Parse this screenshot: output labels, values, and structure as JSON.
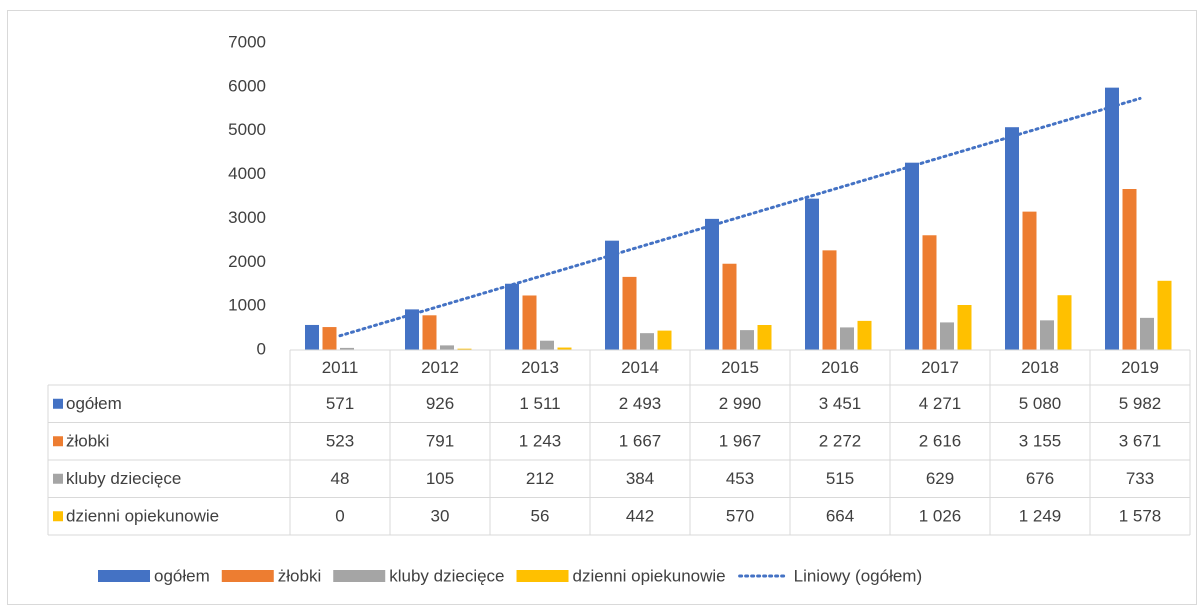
{
  "chart_data": {
    "type": "bar",
    "categories": [
      "2011",
      "2012",
      "2013",
      "2014",
      "2015",
      "2016",
      "2017",
      "2018",
      "2019"
    ],
    "series": [
      {
        "name": "ogółem",
        "color": "#4472c4",
        "values": [
          571,
          926,
          1511,
          2493,
          2990,
          3451,
          4271,
          5080,
          5982
        ],
        "value_labels": [
          "571",
          "926",
          "1 511",
          "2 493",
          "2 990",
          "3 451",
          "4 271",
          "5 080",
          "5 982"
        ]
      },
      {
        "name": "żłobki",
        "color": "#ed7d31",
        "values": [
          523,
          791,
          1243,
          1667,
          1967,
          2272,
          2616,
          3155,
          3671
        ],
        "value_labels": [
          "523",
          "791",
          "1 243",
          "1 667",
          "1 967",
          "2 272",
          "2 616",
          "3 155",
          "3 671"
        ]
      },
      {
        "name": "kluby dziecięce",
        "color": "#a5a5a5",
        "values": [
          48,
          105,
          212,
          384,
          453,
          515,
          629,
          676,
          733
        ],
        "value_labels": [
          "48",
          "105",
          "212",
          "384",
          "453",
          "515",
          "629",
          "676",
          "733"
        ]
      },
      {
        "name": "dzienni opiekunowie",
        "color": "#ffc000",
        "values": [
          0,
          30,
          56,
          442,
          570,
          664,
          1026,
          1249,
          1578
        ],
        "value_labels": [
          "0",
          "30",
          "56",
          "442",
          "570",
          "664",
          "1 026",
          "1 249",
          "1 578"
        ]
      }
    ],
    "trendline": {
      "name": "Liniowy (ogółem)",
      "color": "#4472c4",
      "series": "ogółem"
    },
    "ylim": [
      0,
      7000
    ],
    "yticks": [
      0,
      1000,
      2000,
      3000,
      4000,
      5000,
      6000,
      7000
    ],
    "grid": false
  }
}
